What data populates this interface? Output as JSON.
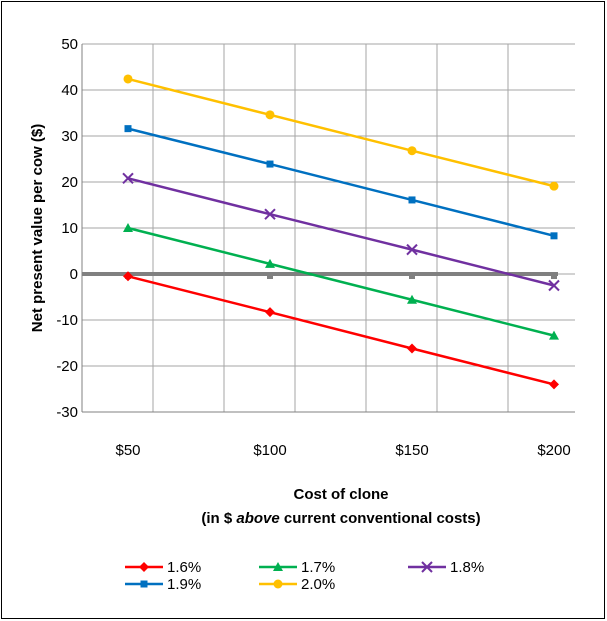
{
  "chart_data": {
    "type": "line",
    "title": "",
    "ylabel": "Net present value per cow ($)",
    "xlabel_line1": "Cost of clone",
    "xlabel_line2_pre": "(in $ ",
    "xlabel_line2_em": "above",
    "xlabel_line2_post": " current conventional costs)",
    "categories": [
      "$50",
      "$100",
      "$150",
      "$200"
    ],
    "ylim": [
      -30,
      50
    ],
    "yticks": [
      -30,
      -20,
      -10,
      0,
      10,
      20,
      30,
      40,
      50
    ],
    "grid": true,
    "legend_position": "bottom",
    "zero_line_color": "#808080",
    "series": [
      {
        "name": "1.6%",
        "color": "#ff0000",
        "marker": "diamond",
        "values": [
          -0.5,
          -8.3,
          -16.2,
          -24.0
        ]
      },
      {
        "name": "1.7%",
        "color": "#00b050",
        "marker": "triangle",
        "values": [
          10.0,
          2.2,
          -5.6,
          -13.4
        ]
      },
      {
        "name": "1.8%",
        "color": "#7030a0",
        "marker": "x",
        "values": [
          20.8,
          13.0,
          5.3,
          -2.5
        ]
      },
      {
        "name": "1.9%",
        "color": "#0070c0",
        "marker": "square",
        "values": [
          31.6,
          23.9,
          16.1,
          8.3
        ]
      },
      {
        "name": "2.0%",
        "color": "#ffc000",
        "marker": "circle",
        "values": [
          42.4,
          34.6,
          26.8,
          19.1
        ]
      }
    ]
  }
}
